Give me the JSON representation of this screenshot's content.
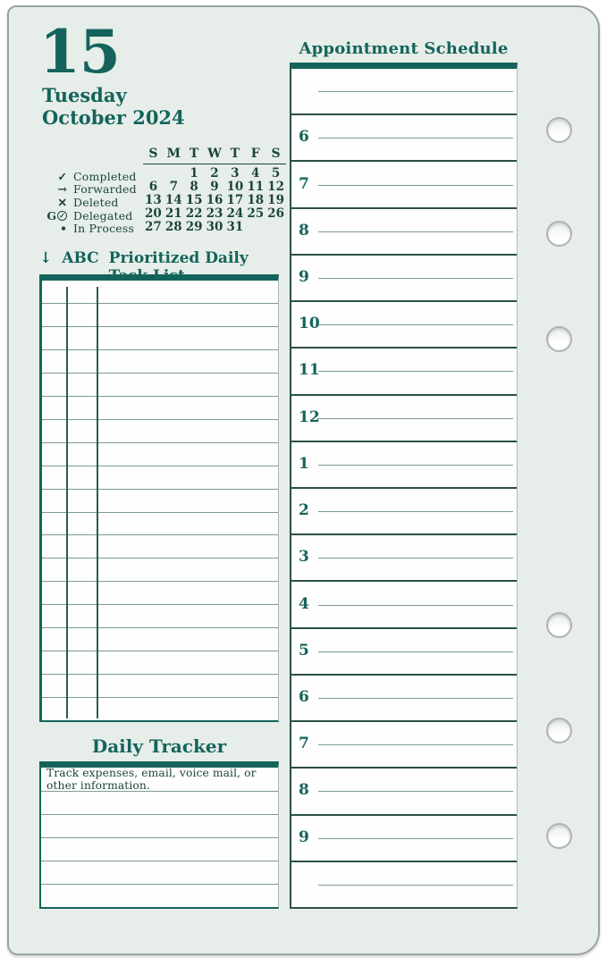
{
  "header": {
    "date_number": "15",
    "weekday": "Tuesday",
    "month_year": "October 2024"
  },
  "legend": {
    "items": [
      {
        "symbol": "✓",
        "label": "Completed"
      },
      {
        "symbol": "→",
        "label": "Forwarded"
      },
      {
        "symbol": "✕",
        "label": "Deleted"
      },
      {
        "symbol": "G",
        "suffix_icon": "circled-check",
        "label": "Delegated"
      },
      {
        "symbol": "•",
        "label": "In Process"
      }
    ]
  },
  "mini_calendar": {
    "weekday_headers": [
      "S",
      "M",
      "T",
      "W",
      "T",
      "F",
      "S"
    ],
    "weeks": [
      [
        "",
        "",
        "1",
        "2",
        "3",
        "4",
        "5"
      ],
      [
        "6",
        "7",
        "8",
        "9",
        "10",
        "11",
        "12"
      ],
      [
        "13",
        "14",
        "15",
        "16",
        "17",
        "18",
        "19"
      ],
      [
        "20",
        "21",
        "22",
        "23",
        "24",
        "25",
        "26"
      ],
      [
        "27",
        "28",
        "29",
        "30",
        "31",
        "",
        ""
      ]
    ],
    "highlighted_day": "15"
  },
  "task_list": {
    "arrow": "↓",
    "abc": "ABC",
    "title": "Prioritized Daily Task List",
    "row_count": 19
  },
  "daily_tracker": {
    "title": "Daily Tracker",
    "hint": "Track expenses, email, voice mail, or other information.",
    "line_count": 5
  },
  "appointment_schedule": {
    "title": "Appointment Schedule",
    "hours": [
      "",
      "6",
      "7",
      "8",
      "9",
      "10",
      "11",
      "12",
      "1",
      "2",
      "3",
      "4",
      "5",
      "6",
      "7",
      "8",
      "9",
      ""
    ]
  },
  "colors": {
    "accent_teal": "#14645c",
    "dark_text": "#1c443e",
    "separator": "#2b4f49",
    "rule_line": "#7f9a96",
    "page_background": "#e7eee9"
  }
}
